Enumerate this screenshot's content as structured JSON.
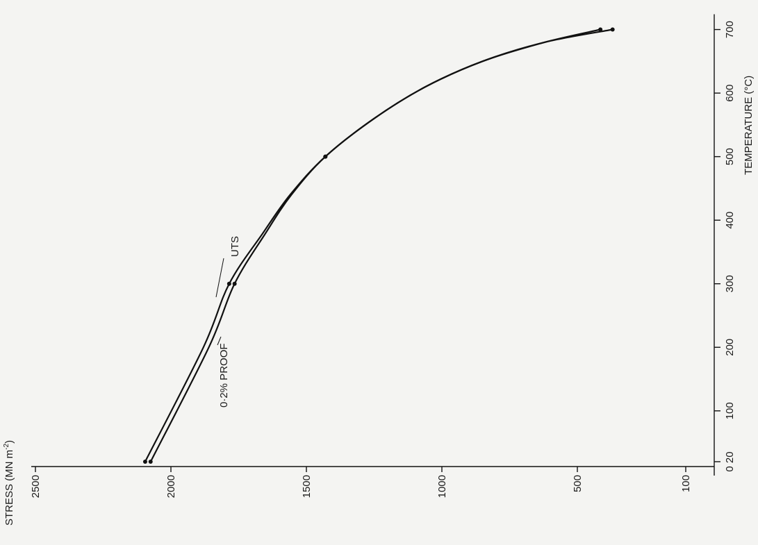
{
  "chart_data": {
    "type": "line",
    "xlabel": "TEMPERATURE (°C)",
    "ylabel": "STRESS (MN m",
    "ylabel_sup": "-2",
    "ylabel_close": ")",
    "x_ticks": [
      {
        "value": 20,
        "label": "0 20"
      },
      {
        "value": 100,
        "label": "100"
      },
      {
        "value": 200,
        "label": "200"
      },
      {
        "value": 300,
        "label": "300"
      },
      {
        "value": 400,
        "label": "400"
      },
      {
        "value": 500,
        "label": "500"
      },
      {
        "value": 600,
        "label": "600"
      },
      {
        "value": 700,
        "label": "700"
      }
    ],
    "y_ticks": [
      {
        "value": 2500,
        "label": "2500"
      },
      {
        "value": 2000,
        "label": "2000"
      },
      {
        "value": 1500,
        "label": "1500"
      },
      {
        "value": 1000,
        "label": "1000"
      },
      {
        "value": 500,
        "label": "500"
      },
      {
        "value": 100,
        "label": "100"
      }
    ],
    "xlim": [
      0,
      720
    ],
    "ylim": [
      0,
      2500
    ],
    "series": [
      {
        "name": "UTS",
        "points": [
          [
            20,
            2095
          ],
          [
            300,
            1785
          ],
          [
            500,
            1430
          ],
          [
            700,
            415
          ]
        ],
        "curve": [
          [
            20,
            2095
          ],
          [
            200,
            1880
          ],
          [
            300,
            1785
          ],
          [
            380,
            1660
          ],
          [
            440,
            1560
          ],
          [
            500,
            1430
          ],
          [
            560,
            1250
          ],
          [
            610,
            1060
          ],
          [
            650,
            850
          ],
          [
            680,
            620
          ],
          [
            700,
            415
          ]
        ]
      },
      {
        "name": "0·2% PROOF",
        "points": [
          [
            20,
            2075
          ],
          [
            300,
            1765
          ],
          [
            500,
            1430
          ],
          [
            700,
            370
          ]
        ],
        "curve": [
          [
            20,
            2075
          ],
          [
            200,
            1860
          ],
          [
            300,
            1765
          ],
          [
            380,
            1650
          ],
          [
            440,
            1555
          ],
          [
            500,
            1430
          ],
          [
            560,
            1250
          ],
          [
            610,
            1060
          ],
          [
            650,
            850
          ],
          [
            680,
            620
          ],
          [
            700,
            370
          ]
        ]
      }
    ],
    "grid": false,
    "legend": "none"
  }
}
